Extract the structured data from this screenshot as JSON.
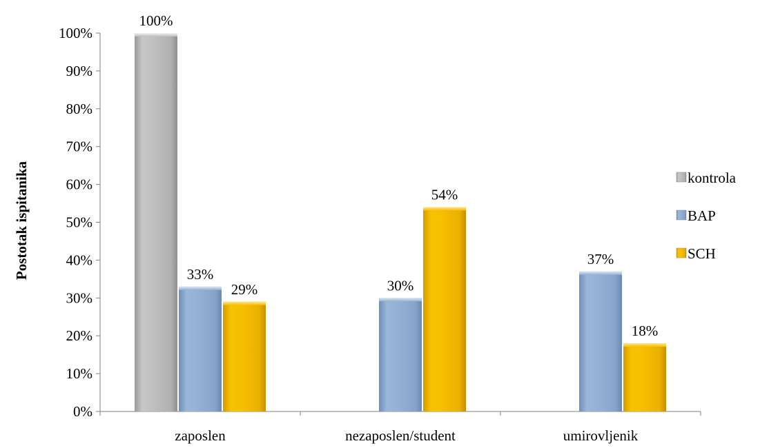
{
  "chart_data": {
    "type": "bar",
    "categories": [
      "zaposlen",
      "nezaposlen/student",
      "umirovljenik"
    ],
    "series": [
      {
        "name": "kontrola",
        "color": "#bfbfbf",
        "values": [
          100,
          null,
          null
        ],
        "labels": [
          "100%",
          "",
          ""
        ]
      },
      {
        "name": "BAP",
        "color": "#95b3d7",
        "values": [
          33,
          30,
          37
        ],
        "labels": [
          "33%",
          "30%",
          "37%"
        ]
      },
      {
        "name": "SCH",
        "color": "#f5bd00",
        "values": [
          29,
          54,
          18
        ],
        "labels": [
          "29%",
          "54%",
          "18%"
        ]
      }
    ],
    "ylabel": "Postotak ispitanika",
    "xlabel": "",
    "ylim": [
      0,
      100
    ],
    "yticks": [
      "0%",
      "10%",
      "20%",
      "30%",
      "40%",
      "50%",
      "60%",
      "70%",
      "80%",
      "90%",
      "100%"
    ],
    "legend_position": "right",
    "grid": false
  }
}
